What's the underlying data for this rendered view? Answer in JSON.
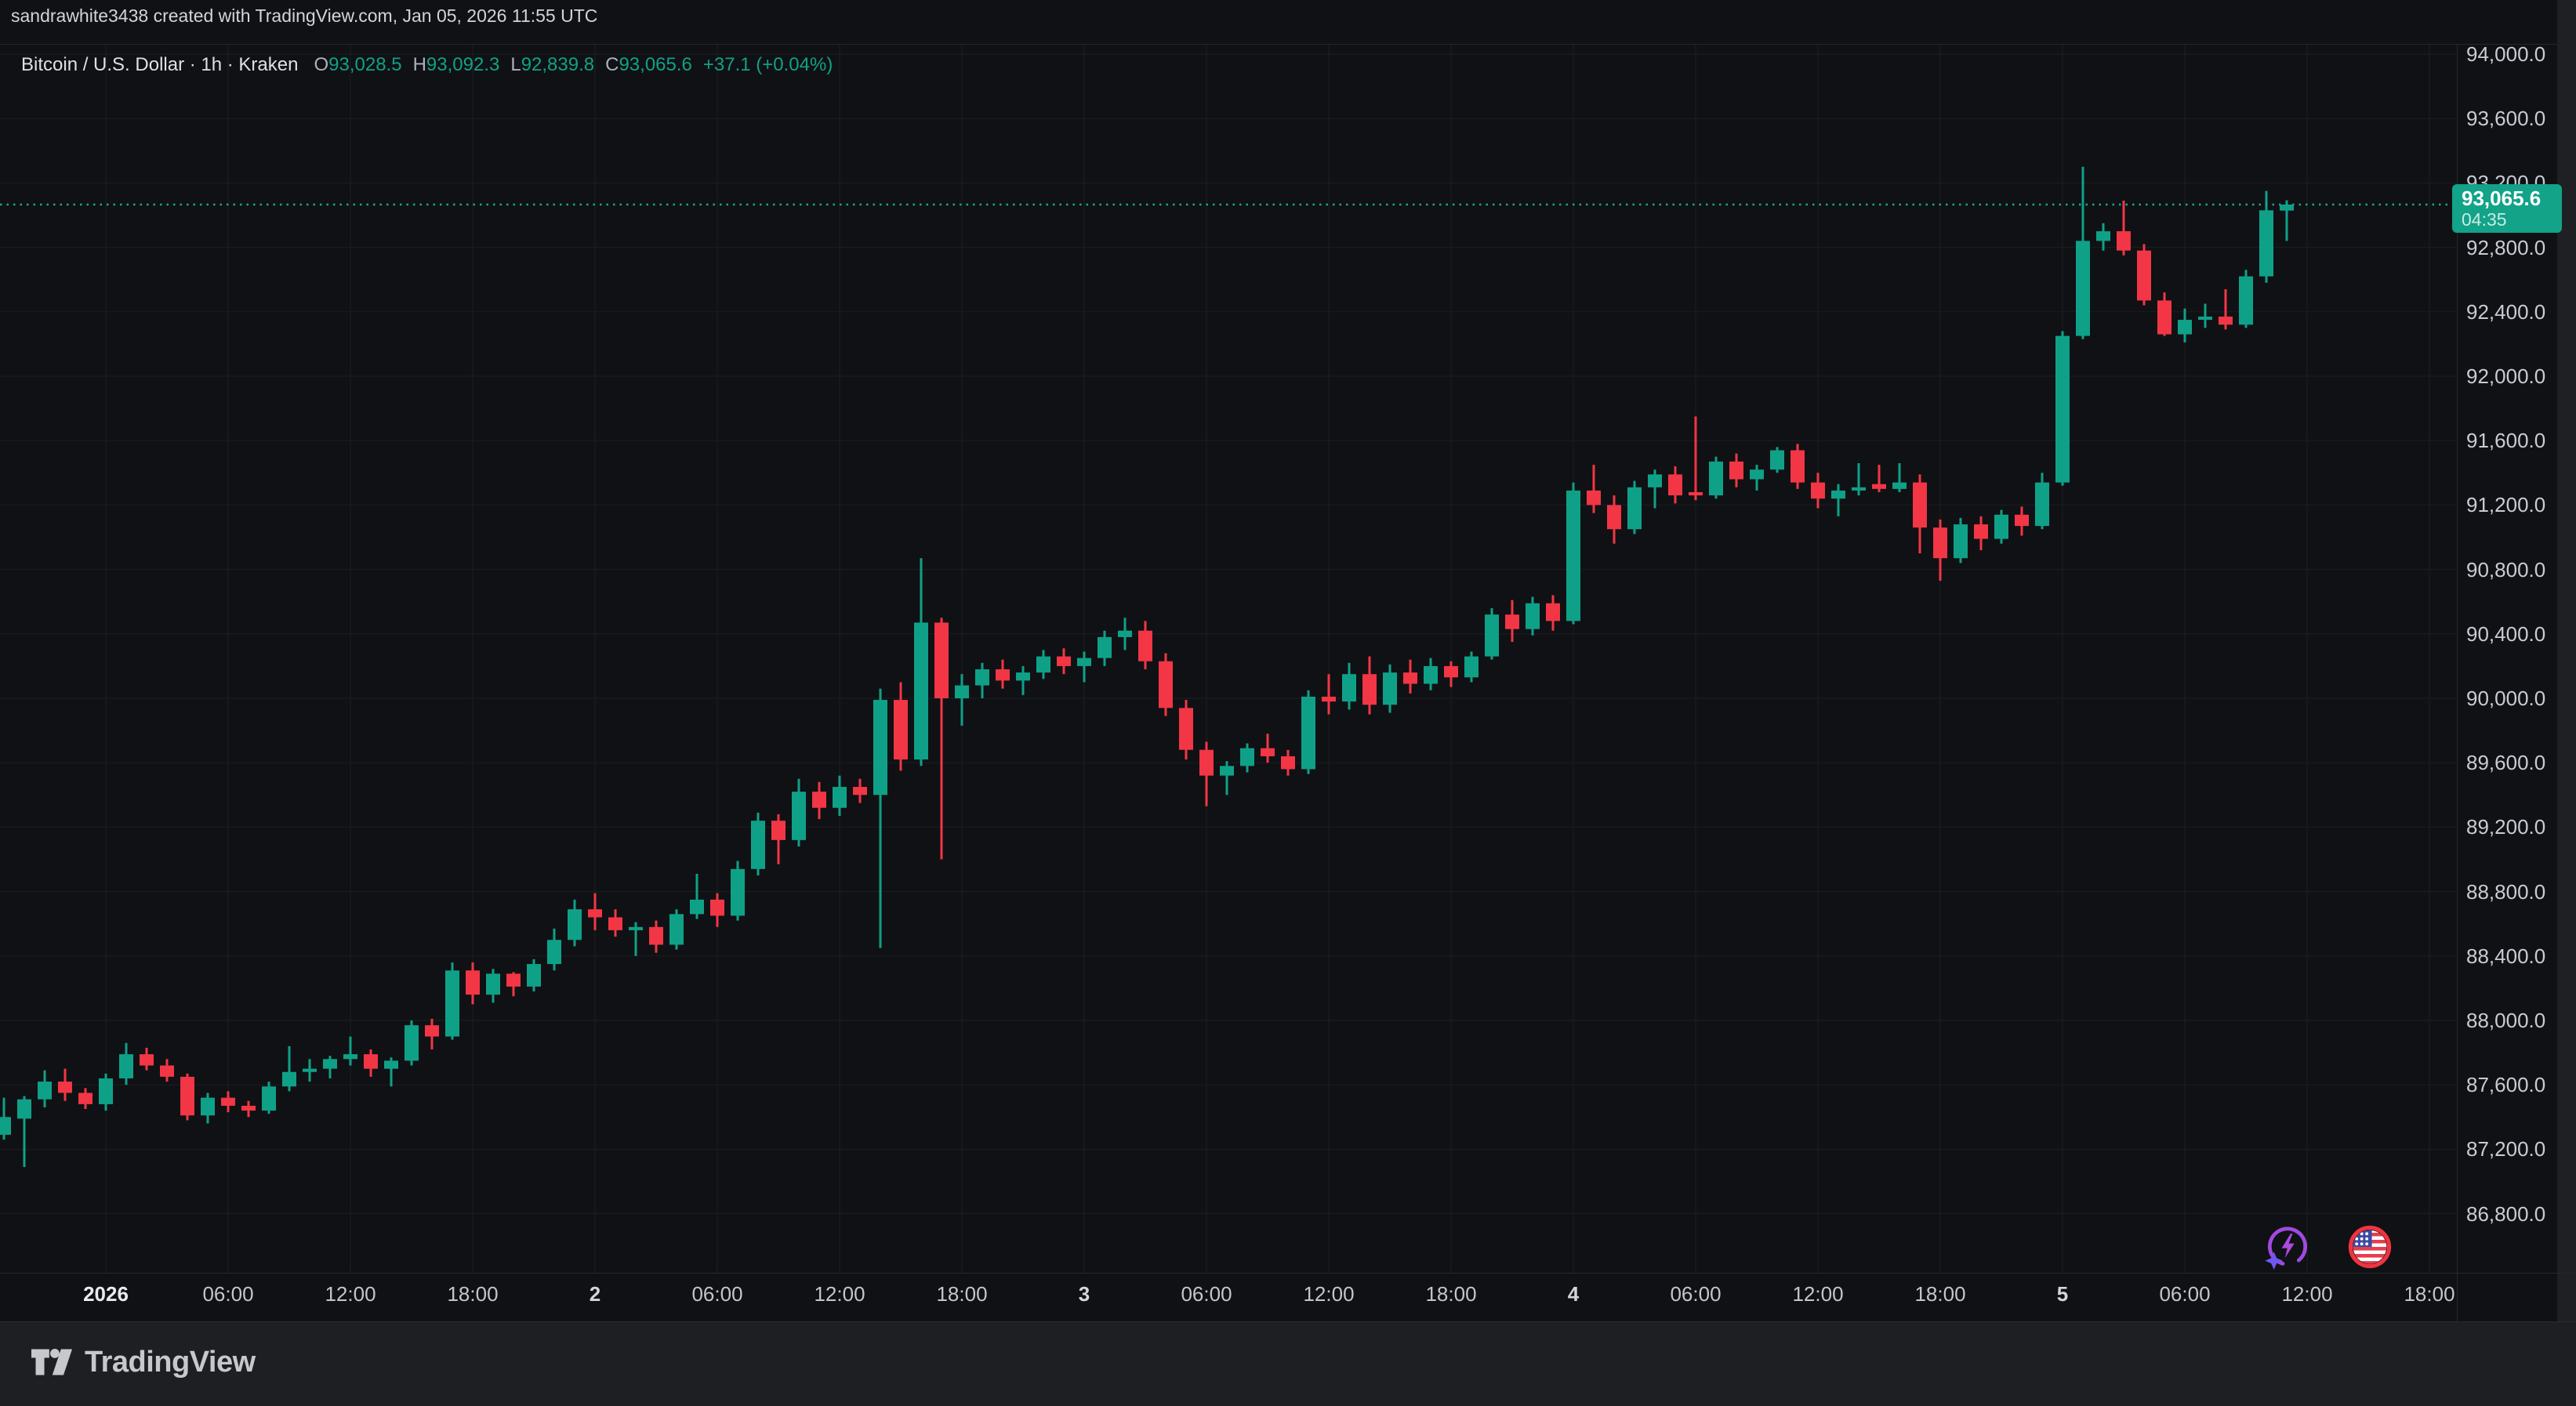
{
  "header": {
    "attribution": "sandrawhite3438 created with TradingView.com, Jan 05, 2026 11:55 UTC"
  },
  "legend": {
    "title": "Bitcoin / U.S. Dollar · 1h · Kraken",
    "ohlc": [
      {
        "label": "O",
        "value": "93,028.5"
      },
      {
        "label": "H",
        "value": "93,092.3"
      },
      {
        "label": "L",
        "value": "92,839.8"
      },
      {
        "label": "C",
        "value": "93,065.6"
      }
    ],
    "change": "+37.1 (+0.04%)"
  },
  "price_axis": {
    "ticks": [
      {
        "text": "94,000.0",
        "value": 94000
      },
      {
        "text": "93,600.0",
        "value": 93600
      },
      {
        "text": "93,200.0",
        "value": 93200
      },
      {
        "text": "92,800.0",
        "value": 92800
      },
      {
        "text": "92,400.0",
        "value": 92400
      },
      {
        "text": "92,000.0",
        "value": 92000
      },
      {
        "text": "91,600.0",
        "value": 91600
      },
      {
        "text": "91,200.0",
        "value": 91200
      },
      {
        "text": "90,800.0",
        "value": 90800
      },
      {
        "text": "90,400.0",
        "value": 90400
      },
      {
        "text": "90,000.0",
        "value": 90000
      },
      {
        "text": "89,600.0",
        "value": 89600
      },
      {
        "text": "89,200.0",
        "value": 89200
      },
      {
        "text": "88,800.0",
        "value": 88800
      },
      {
        "text": "88,400.0",
        "value": 88400
      },
      {
        "text": "88,000.0",
        "value": 88000
      },
      {
        "text": "87,600.0",
        "value": 87600
      },
      {
        "text": "87,200.0",
        "value": 87200
      },
      {
        "text": "86,800.0",
        "value": 86800
      }
    ],
    "badge": {
      "price": "93,065.6",
      "countdown": "04:35"
    }
  },
  "time_axis": {
    "ticks": [
      {
        "text": "2026",
        "i": 4,
        "kind": "year"
      },
      {
        "text": "06:00",
        "i": 10,
        "kind": "time"
      },
      {
        "text": "12:00",
        "i": 16,
        "kind": "time"
      },
      {
        "text": "18:00",
        "i": 22,
        "kind": "time"
      },
      {
        "text": "2",
        "i": 28,
        "kind": "day"
      },
      {
        "text": "06:00",
        "i": 34,
        "kind": "time"
      },
      {
        "text": "12:00",
        "i": 40,
        "kind": "time"
      },
      {
        "text": "18:00",
        "i": 46,
        "kind": "time"
      },
      {
        "text": "3",
        "i": 52,
        "kind": "day"
      },
      {
        "text": "06:00",
        "i": 58,
        "kind": "time"
      },
      {
        "text": "12:00",
        "i": 64,
        "kind": "time"
      },
      {
        "text": "18:00",
        "i": 70,
        "kind": "time"
      },
      {
        "text": "4",
        "i": 76,
        "kind": "day"
      },
      {
        "text": "06:00",
        "i": 82,
        "kind": "time"
      },
      {
        "text": "12:00",
        "i": 88,
        "kind": "time"
      },
      {
        "text": "18:00",
        "i": 94,
        "kind": "time"
      },
      {
        "text": "5",
        "i": 100,
        "kind": "day"
      },
      {
        "text": "06:00",
        "i": 106,
        "kind": "time"
      },
      {
        "text": "12:00",
        "i": 112,
        "kind": "time"
      },
      {
        "text": "18:00",
        "i": 118,
        "kind": "time"
      }
    ]
  },
  "markers": {
    "spark_icon": "ai-spark",
    "flag_icon": "us-economic-event"
  },
  "footer": {
    "brand": "TradingView"
  },
  "colors": {
    "background": "#101114",
    "grid": "#1c1e22",
    "up": "#0fa188",
    "down": "#f23645",
    "badge_bg": "#12a389",
    "dotted_line": "#15ab90",
    "axis_text": "#c8ccd3",
    "title_text": "#dde0e4",
    "footer_bg": "#1d1f23"
  },
  "chart_data": {
    "type": "candlestick",
    "title": "Bitcoin / U.S. Dollar",
    "exchange": "Kraken",
    "interval": "1h",
    "last_price": 93065.6,
    "price_range": [
      86800,
      94000
    ],
    "grid_step": 400,
    "legend_position": "top-left",
    "candles": [
      [
        "Dec 31 19:00",
        87290,
        87520,
        87260,
        87400
      ],
      [
        "Dec 31 20:00",
        87390,
        87530,
        87090,
        87510
      ],
      [
        "Dec 31 21:00",
        87510,
        87690,
        87460,
        87620
      ],
      [
        "Dec 31 22:00",
        87620,
        87700,
        87500,
        87550
      ],
      [
        "Dec 31 23:00",
        87550,
        87580,
        87450,
        87480
      ],
      [
        "Jan 1 00:00",
        87480,
        87670,
        87440,
        87640
      ],
      [
        "Jan 1 01:00",
        87640,
        87860,
        87600,
        87790
      ],
      [
        "Jan 1 02:00",
        87790,
        87830,
        87690,
        87720
      ],
      [
        "Jan 1 03:00",
        87720,
        87760,
        87620,
        87650
      ],
      [
        "Jan 1 04:00",
        87650,
        87670,
        87380,
        87410
      ],
      [
        "Jan 1 05:00",
        87410,
        87550,
        87360,
        87520
      ],
      [
        "Jan 1 06:00",
        87520,
        87560,
        87430,
        87470
      ],
      [
        "Jan 1 07:00",
        87470,
        87500,
        87400,
        87440
      ],
      [
        "Jan 1 08:00",
        87440,
        87620,
        87420,
        87590
      ],
      [
        "Jan 1 09:00",
        87590,
        87840,
        87560,
        87680
      ],
      [
        "Jan 1 10:00",
        87680,
        87760,
        87620,
        87700
      ],
      [
        "Jan 1 11:00",
        87700,
        87780,
        87640,
        87760
      ],
      [
        "Jan 1 12:00",
        87760,
        87900,
        87720,
        87790
      ],
      [
        "Jan 1 13:00",
        87790,
        87820,
        87650,
        87700
      ],
      [
        "Jan 1 14:00",
        87700,
        87770,
        87590,
        87750
      ],
      [
        "Jan 1 15:00",
        87750,
        88000,
        87720,
        87970
      ],
      [
        "Jan 1 16:00",
        87970,
        88010,
        87820,
        87900
      ],
      [
        "Jan 1 17:00",
        87900,
        88360,
        87880,
        88310
      ],
      [
        "Jan 1 18:00",
        88310,
        88360,
        88100,
        88160
      ],
      [
        "Jan 1 19:00",
        88160,
        88320,
        88110,
        88290
      ],
      [
        "Jan 1 20:00",
        88290,
        88300,
        88150,
        88210
      ],
      [
        "Jan 1 21:00",
        88210,
        88380,
        88180,
        88350
      ],
      [
        "Jan 1 22:00",
        88350,
        88570,
        88310,
        88500
      ],
      [
        "Jan 1 23:00",
        88500,
        88750,
        88460,
        88690
      ],
      [
        "Jan 2 00:00",
        88690,
        88790,
        88560,
        88640
      ],
      [
        "Jan 2 01:00",
        88640,
        88690,
        88520,
        88560
      ],
      [
        "Jan 2 02:00",
        88560,
        88610,
        88400,
        88580
      ],
      [
        "Jan 2 03:00",
        88580,
        88620,
        88420,
        88470
      ],
      [
        "Jan 2 04:00",
        88470,
        88690,
        88440,
        88660
      ],
      [
        "Jan 2 05:00",
        88660,
        88910,
        88630,
        88750
      ],
      [
        "Jan 2 06:00",
        88750,
        88790,
        88580,
        88650
      ],
      [
        "Jan 2 07:00",
        88650,
        88990,
        88620,
        88940
      ],
      [
        "Jan 2 08:00",
        88940,
        89290,
        88900,
        89240
      ],
      [
        "Jan 2 09:00",
        89240,
        89280,
        88970,
        89120
      ],
      [
        "Jan 2 10:00",
        89120,
        89500,
        89080,
        89420
      ],
      [
        "Jan 2 11:00",
        89420,
        89480,
        89250,
        89320
      ],
      [
        "Jan 2 12:00",
        89320,
        89520,
        89270,
        89450
      ],
      [
        "Jan 2 13:00",
        89450,
        89500,
        89350,
        89400
      ],
      [
        "Jan 2 14:00",
        89400,
        90060,
        88450,
        89990
      ],
      [
        "Jan 2 15:00",
        89990,
        90100,
        89550,
        89620
      ],
      [
        "Jan 2 16:00",
        89620,
        90870,
        89580,
        90470
      ],
      [
        "Jan 2 17:00",
        90470,
        90500,
        89000,
        90000
      ],
      [
        "Jan 2 18:00",
        90000,
        90150,
        89830,
        90080
      ],
      [
        "Jan 2 19:00",
        90080,
        90220,
        90000,
        90180
      ],
      [
        "Jan 2 20:00",
        90180,
        90240,
        90060,
        90110
      ],
      [
        "Jan 2 21:00",
        90110,
        90200,
        90020,
        90160
      ],
      [
        "Jan 2 22:00",
        90160,
        90300,
        90120,
        90260
      ],
      [
        "Jan 2 23:00",
        90260,
        90310,
        90150,
        90200
      ],
      [
        "Jan 3 00:00",
        90200,
        90290,
        90100,
        90250
      ],
      [
        "Jan 3 01:00",
        90250,
        90420,
        90200,
        90380
      ],
      [
        "Jan 3 02:00",
        90380,
        90500,
        90300,
        90420
      ],
      [
        "Jan 3 03:00",
        90420,
        90480,
        90180,
        90230
      ],
      [
        "Jan 3 04:00",
        90230,
        90280,
        89890,
        89940
      ],
      [
        "Jan 3 05:00",
        89940,
        89990,
        89620,
        89680
      ],
      [
        "Jan 3 06:00",
        89680,
        89730,
        89330,
        89520
      ],
      [
        "Jan 3 07:00",
        89520,
        89610,
        89400,
        89580
      ],
      [
        "Jan 3 08:00",
        89580,
        89720,
        89540,
        89690
      ],
      [
        "Jan 3 09:00",
        89690,
        89780,
        89600,
        89640
      ],
      [
        "Jan 3 10:00",
        89640,
        89680,
        89520,
        89560
      ],
      [
        "Jan 3 11:00",
        89560,
        90050,
        89530,
        90010
      ],
      [
        "Jan 3 12:00",
        90010,
        90150,
        89900,
        89980
      ],
      [
        "Jan 3 13:00",
        89980,
        90220,
        89930,
        90150
      ],
      [
        "Jan 3 14:00",
        90150,
        90260,
        89900,
        89960
      ],
      [
        "Jan 3 15:00",
        89960,
        90210,
        89910,
        90160
      ],
      [
        "Jan 3 16:00",
        90160,
        90240,
        90030,
        90090
      ],
      [
        "Jan 3 17:00",
        90090,
        90250,
        90050,
        90200
      ],
      [
        "Jan 3 18:00",
        90200,
        90230,
        90070,
        90130
      ],
      [
        "Jan 3 19:00",
        90130,
        90290,
        90100,
        90260
      ],
      [
        "Jan 3 20:00",
        90260,
        90560,
        90240,
        90520
      ],
      [
        "Jan 3 21:00",
        90520,
        90610,
        90350,
        90430
      ],
      [
        "Jan 3 22:00",
        90430,
        90630,
        90390,
        90590
      ],
      [
        "Jan 3 23:00",
        90590,
        90640,
        90420,
        90480
      ],
      [
        "Jan 4 00:00",
        90480,
        91340,
        90460,
        91290
      ],
      [
        "Jan 4 01:00",
        91290,
        91450,
        91150,
        91200
      ],
      [
        "Jan 4 02:00",
        91200,
        91260,
        90960,
        91050
      ],
      [
        "Jan 4 03:00",
        91050,
        91350,
        91020,
        91310
      ],
      [
        "Jan 4 04:00",
        91310,
        91420,
        91180,
        91390
      ],
      [
        "Jan 4 05:00",
        91390,
        91440,
        91210,
        91260
      ],
      [
        "Jan 4 06:00",
        91280,
        91750,
        91230,
        91260
      ],
      [
        "Jan 4 07:00",
        91260,
        91500,
        91240,
        91470
      ],
      [
        "Jan 4 08:00",
        91470,
        91520,
        91310,
        91360
      ],
      [
        "Jan 4 09:00",
        91360,
        91450,
        91290,
        91420
      ],
      [
        "Jan 4 10:00",
        91420,
        91560,
        91400,
        91540
      ],
      [
        "Jan 4 11:00",
        91540,
        91580,
        91300,
        91340
      ],
      [
        "Jan 4 12:00",
        91340,
        91400,
        91180,
        91240
      ],
      [
        "Jan 4 13:00",
        91240,
        91330,
        91130,
        91290
      ],
      [
        "Jan 4 14:00",
        91290,
        91460,
        91260,
        91310
      ],
      [
        "Jan 4 15:00",
        91330,
        91450,
        91280,
        91300
      ],
      [
        "Jan 4 16:00",
        91300,
        91460,
        91280,
        91340
      ],
      [
        "Jan 4 17:00",
        91340,
        91390,
        90900,
        91060
      ],
      [
        "Jan 4 18:00",
        91060,
        91110,
        90730,
        90870
      ],
      [
        "Jan 4 19:00",
        90870,
        91120,
        90840,
        91080
      ],
      [
        "Jan 4 20:00",
        91080,
        91130,
        90920,
        90990
      ],
      [
        "Jan 4 21:00",
        90990,
        91170,
        90960,
        91140
      ],
      [
        "Jan 4 22:00",
        91140,
        91190,
        91010,
        91070
      ],
      [
        "Jan 4 23:00",
        91070,
        91400,
        91050,
        91340
      ],
      [
        "Jan 5 00:00",
        91340,
        92280,
        91320,
        92250
      ],
      [
        "Jan 5 01:00",
        92250,
        93300,
        92230,
        92840
      ],
      [
        "Jan 5 02:00",
        92840,
        92950,
        92780,
        92900
      ],
      [
        "Jan 5 03:00",
        92900,
        93090,
        92750,
        92780
      ],
      [
        "Jan 5 04:00",
        92780,
        92820,
        92440,
        92470
      ],
      [
        "Jan 5 05:00",
        92470,
        92520,
        92250,
        92260
      ],
      [
        "Jan 5 06:00",
        92260,
        92420,
        92210,
        92350
      ],
      [
        "Jan 5 07:00",
        92350,
        92450,
        92300,
        92370
      ],
      [
        "Jan 5 08:00",
        92370,
        92540,
        92290,
        92320
      ],
      [
        "Jan 5 09:00",
        92320,
        92660,
        92300,
        92620
      ],
      [
        "Jan 5 10:00",
        92620,
        93150,
        92580,
        93030
      ],
      [
        "Jan 5 11:00",
        93028.5,
        93092.3,
        92839.8,
        93065.6
      ]
    ]
  }
}
